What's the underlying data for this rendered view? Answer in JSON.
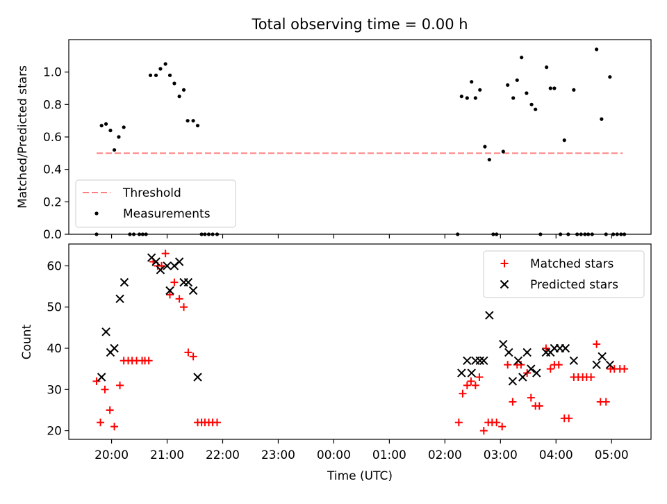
{
  "colors": {
    "threshold": "#ff7f7f",
    "measurement": "#000000",
    "matched": "#ff0000",
    "predicted": "#000000"
  },
  "chart_data": [
    {
      "type": "scatter",
      "title": "Total observing time = 0.00 h",
      "ylabel": "Matched/Predicted stars",
      "xlabel": "",
      "x_unit": "hours after 20:00 UTC",
      "xlim": [
        -0.77,
        9.71
      ],
      "ylim": [
        0.0,
        1.2
      ],
      "yticks": [
        0.0,
        0.2,
        0.4,
        0.6,
        0.8,
        1.0
      ],
      "ytick_labels": [
        "0.0",
        "0.2",
        "0.4",
        "0.6",
        "0.8",
        "1.0"
      ],
      "legend_position": "lower-left",
      "threshold": {
        "name": "Threshold",
        "value": 0.5,
        "x_range": [
          -0.27,
          9.2
        ]
      },
      "series": [
        {
          "name": "Measurements",
          "points": [
            [
              -0.27,
              0.0
            ],
            [
              -0.18,
              0.67
            ],
            [
              -0.1,
              0.68
            ],
            [
              -0.02,
              0.64
            ],
            [
              0.05,
              0.52
            ],
            [
              0.13,
              0.6
            ],
            [
              0.22,
              0.66
            ],
            [
              0.33,
              0.0
            ],
            [
              0.4,
              0.0
            ],
            [
              0.5,
              0.0
            ],
            [
              0.56,
              0.0
            ],
            [
              0.62,
              0.0
            ],
            [
              0.7,
              0.98
            ],
            [
              0.8,
              0.98
            ],
            [
              0.88,
              1.02
            ],
            [
              0.97,
              1.05
            ],
            [
              1.05,
              0.98
            ],
            [
              1.13,
              0.93
            ],
            [
              1.22,
              0.85
            ],
            [
              1.3,
              0.89
            ],
            [
              1.37,
              0.7
            ],
            [
              1.47,
              0.7
            ],
            [
              1.55,
              0.67
            ],
            [
              1.62,
              0.0
            ],
            [
              1.68,
              0.0
            ],
            [
              1.75,
              0.0
            ],
            [
              1.82,
              0.0
            ],
            [
              1.9,
              0.0
            ],
            [
              6.23,
              0.0
            ],
            [
              6.3,
              0.85
            ],
            [
              6.4,
              0.84
            ],
            [
              6.48,
              0.94
            ],
            [
              6.55,
              0.84
            ],
            [
              6.63,
              0.89
            ],
            [
              6.72,
              0.54
            ],
            [
              6.8,
              0.46
            ],
            [
              6.87,
              0.0
            ],
            [
              6.93,
              0.0
            ],
            [
              7.05,
              0.51
            ],
            [
              7.13,
              0.92
            ],
            [
              7.23,
              0.84
            ],
            [
              7.3,
              0.95
            ],
            [
              7.38,
              1.09
            ],
            [
              7.47,
              0.87
            ],
            [
              7.56,
              0.8
            ],
            [
              7.63,
              0.77
            ],
            [
              7.72,
              0.0
            ],
            [
              7.83,
              1.03
            ],
            [
              7.9,
              0.9
            ],
            [
              7.97,
              0.9
            ],
            [
              8.08,
              0.0
            ],
            [
              8.15,
              0.58
            ],
            [
              8.22,
              0.0
            ],
            [
              8.32,
              0.89
            ],
            [
              8.38,
              0.0
            ],
            [
              8.45,
              0.0
            ],
            [
              8.52,
              0.0
            ],
            [
              8.58,
              0.0
            ],
            [
              8.65,
              0.0
            ],
            [
              8.73,
              1.14
            ],
            [
              8.82,
              0.71
            ],
            [
              8.9,
              0.0
            ],
            [
              8.97,
              0.97
            ],
            [
              9.03,
              0.0
            ],
            [
              9.1,
              0.0
            ],
            [
              9.17,
              0.0
            ],
            [
              9.23,
              0.0
            ]
          ]
        }
      ]
    },
    {
      "type": "scatter",
      "title": "",
      "ylabel": "Count",
      "xlabel": "Time (UTC)",
      "x_unit": "hours after 20:00 UTC",
      "xlim": [
        -0.77,
        9.71
      ],
      "ylim": [
        17.9,
        65.3
      ],
      "yticks": [
        20,
        30,
        40,
        50,
        60
      ],
      "ytick_labels": [
        "20",
        "30",
        "40",
        "50",
        "60"
      ],
      "xticks": [
        0,
        1,
        2,
        3,
        4,
        5,
        6,
        7,
        8,
        9
      ],
      "xtick_labels": [
        "20:00",
        "21:00",
        "22:00",
        "23:00",
        "00:00",
        "01:00",
        "02:00",
        "03:00",
        "04:00",
        "05:00"
      ],
      "legend_position": "upper-right",
      "series": [
        {
          "name": "Matched stars",
          "marker": "+",
          "points": [
            [
              -0.27,
              32
            ],
            [
              -0.2,
              22
            ],
            [
              -0.12,
              30
            ],
            [
              -0.03,
              25
            ],
            [
              0.05,
              21
            ],
            [
              0.15,
              31
            ],
            [
              0.22,
              37
            ],
            [
              0.3,
              37
            ],
            [
              0.37,
              37
            ],
            [
              0.45,
              37
            ],
            [
              0.55,
              37
            ],
            [
              0.6,
              37
            ],
            [
              0.67,
              37
            ],
            [
              0.75,
              61
            ],
            [
              0.83,
              60
            ],
            [
              0.9,
              60
            ],
            [
              0.97,
              63
            ],
            [
              1.05,
              53
            ],
            [
              1.13,
              56
            ],
            [
              1.22,
              52
            ],
            [
              1.3,
              50
            ],
            [
              1.38,
              39
            ],
            [
              1.47,
              38
            ],
            [
              1.55,
              22
            ],
            [
              1.62,
              22
            ],
            [
              1.68,
              22
            ],
            [
              1.75,
              22
            ],
            [
              1.82,
              22
            ],
            [
              1.9,
              22
            ],
            [
              6.25,
              22
            ],
            [
              6.32,
              29
            ],
            [
              6.4,
              31
            ],
            [
              6.47,
              32
            ],
            [
              6.55,
              31
            ],
            [
              6.62,
              33
            ],
            [
              6.7,
              20
            ],
            [
              6.78,
              22
            ],
            [
              6.85,
              22
            ],
            [
              6.93,
              22
            ],
            [
              7.03,
              21
            ],
            [
              7.13,
              36
            ],
            [
              7.22,
              27
            ],
            [
              7.3,
              36
            ],
            [
              7.37,
              36
            ],
            [
              7.48,
              34
            ],
            [
              7.55,
              28
            ],
            [
              7.63,
              26
            ],
            [
              7.7,
              26
            ],
            [
              7.82,
              40
            ],
            [
              7.9,
              35
            ],
            [
              7.97,
              36
            ],
            [
              8.05,
              36
            ],
            [
              8.15,
              23
            ],
            [
              8.23,
              23
            ],
            [
              8.32,
              33
            ],
            [
              8.4,
              33
            ],
            [
              8.48,
              33
            ],
            [
              8.55,
              33
            ],
            [
              8.63,
              33
            ],
            [
              8.73,
              41
            ],
            [
              8.8,
              27
            ],
            [
              8.9,
              27
            ],
            [
              8.98,
              35
            ],
            [
              9.05,
              35
            ],
            [
              9.15,
              35
            ],
            [
              9.23,
              35
            ]
          ]
        },
        {
          "name": "Predicted stars",
          "marker": "x",
          "points": [
            [
              -0.18,
              33
            ],
            [
              -0.1,
              44
            ],
            [
              -0.02,
              39
            ],
            [
              0.05,
              40
            ],
            [
              0.15,
              52
            ],
            [
              0.23,
              56
            ],
            [
              0.72,
              62
            ],
            [
              0.8,
              61
            ],
            [
              0.88,
              59
            ],
            [
              1.0,
              60
            ],
            [
              1.05,
              54
            ],
            [
              1.13,
              60
            ],
            [
              1.22,
              61
            ],
            [
              1.3,
              56
            ],
            [
              1.38,
              56
            ],
            [
              1.47,
              54
            ],
            [
              1.55,
              33
            ],
            [
              6.3,
              34
            ],
            [
              6.4,
              37
            ],
            [
              6.48,
              34
            ],
            [
              6.55,
              37
            ],
            [
              6.63,
              37
            ],
            [
              6.7,
              37
            ],
            [
              6.8,
              48
            ],
            [
              7.05,
              41
            ],
            [
              7.15,
              39
            ],
            [
              7.22,
              32
            ],
            [
              7.32,
              37
            ],
            [
              7.4,
              33
            ],
            [
              7.48,
              39
            ],
            [
              7.55,
              35
            ],
            [
              7.65,
              34
            ],
            [
              7.82,
              39
            ],
            [
              7.9,
              39
            ],
            [
              7.97,
              40
            ],
            [
              8.07,
              40
            ],
            [
              8.17,
              40
            ],
            [
              8.32,
              37
            ],
            [
              8.73,
              36
            ],
            [
              8.83,
              38
            ],
            [
              8.97,
              36
            ]
          ]
        }
      ]
    }
  ]
}
